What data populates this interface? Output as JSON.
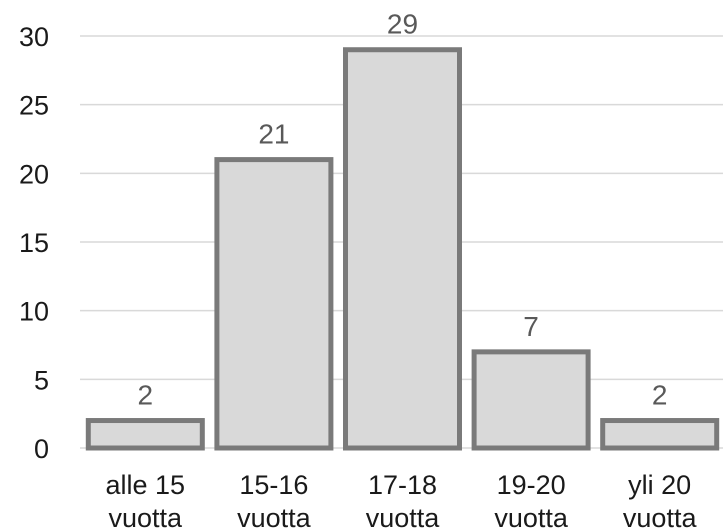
{
  "chart_data": {
    "type": "bar",
    "categories": [
      [
        "alle 15",
        "vuotta"
      ],
      [
        "15-16",
        "vuotta"
      ],
      [
        "17-18",
        "vuotta"
      ],
      [
        "19-20",
        "vuotta"
      ],
      [
        "yli 20",
        "vuotta"
      ]
    ],
    "values": [
      2,
      21,
      29,
      7,
      2
    ],
    "data_labels": [
      "2",
      "21",
      "29",
      "7",
      "2"
    ],
    "title": "",
    "xlabel": "",
    "ylabel": "",
    "ylim": [
      0,
      30
    ],
    "yticks": [
      0,
      5,
      10,
      15,
      20,
      25,
      30
    ],
    "ytick_labels": [
      "0",
      "5",
      "10",
      "15",
      "20",
      "25",
      "30"
    ],
    "grid": true,
    "legend": "none",
    "colors": {
      "bar_fill": "#d9d9d9",
      "bar_stroke": "#7a7a7a",
      "grid": "#d9d9d9",
      "data_label": "#595959"
    }
  }
}
